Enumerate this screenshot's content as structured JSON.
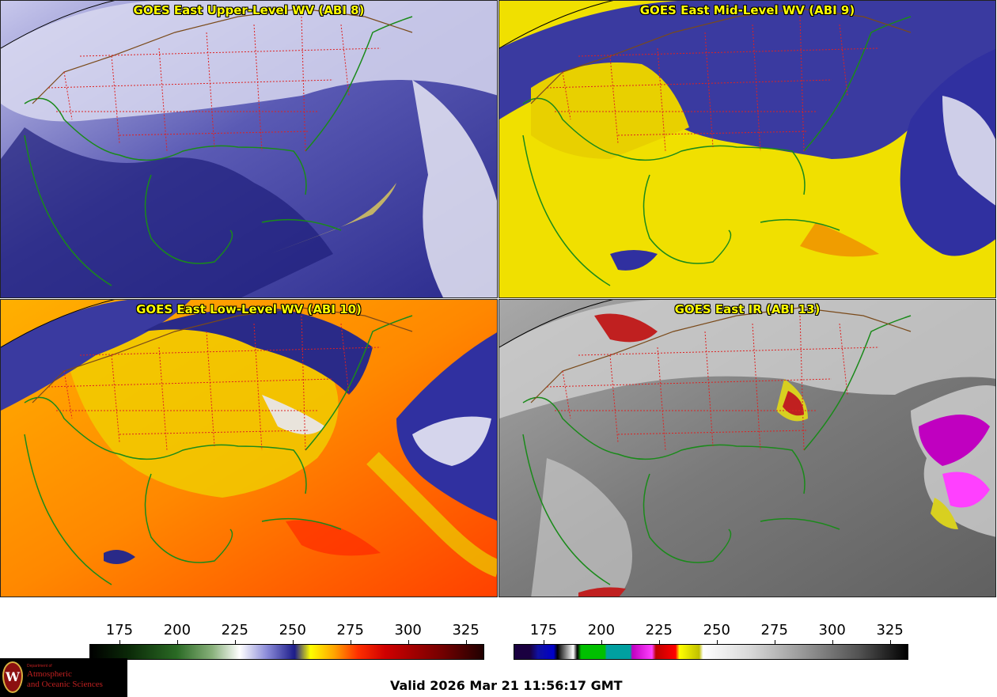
{
  "panels": [
    {
      "id": "upper",
      "title": "GOES East Upper-Level WV (ABI 8)"
    },
    {
      "id": "mid",
      "title": "GOES East Mid-Level WV (ABI 9)"
    },
    {
      "id": "low",
      "title": "GOES East Low-Level WV (ABI 10)"
    },
    {
      "id": "ir",
      "title": "GOES East IR (ABI 13)"
    }
  ],
  "colorbars": {
    "wv": {
      "ticks": [
        "175",
        "200",
        "225",
        "250",
        "275",
        "300",
        "325"
      ],
      "min": 162,
      "max": 333
    },
    "ir": {
      "ticks": [
        "175",
        "200",
        "225",
        "250",
        "275",
        "300",
        "325"
      ],
      "min": 162,
      "max": 333
    }
  },
  "valid_time": "Valid 2026 Mar 21 11:56:17 GMT",
  "logo": {
    "dept": "Department of",
    "line1": "Atmospheric",
    "line2": "and Oceanic Sciences",
    "seal_letter": "W"
  },
  "colors": {
    "title_text": "#ffff00",
    "state_borders": "#dd2222",
    "coastlines": "#1a8a1a",
    "country_borders": "#7a4a1a"
  }
}
